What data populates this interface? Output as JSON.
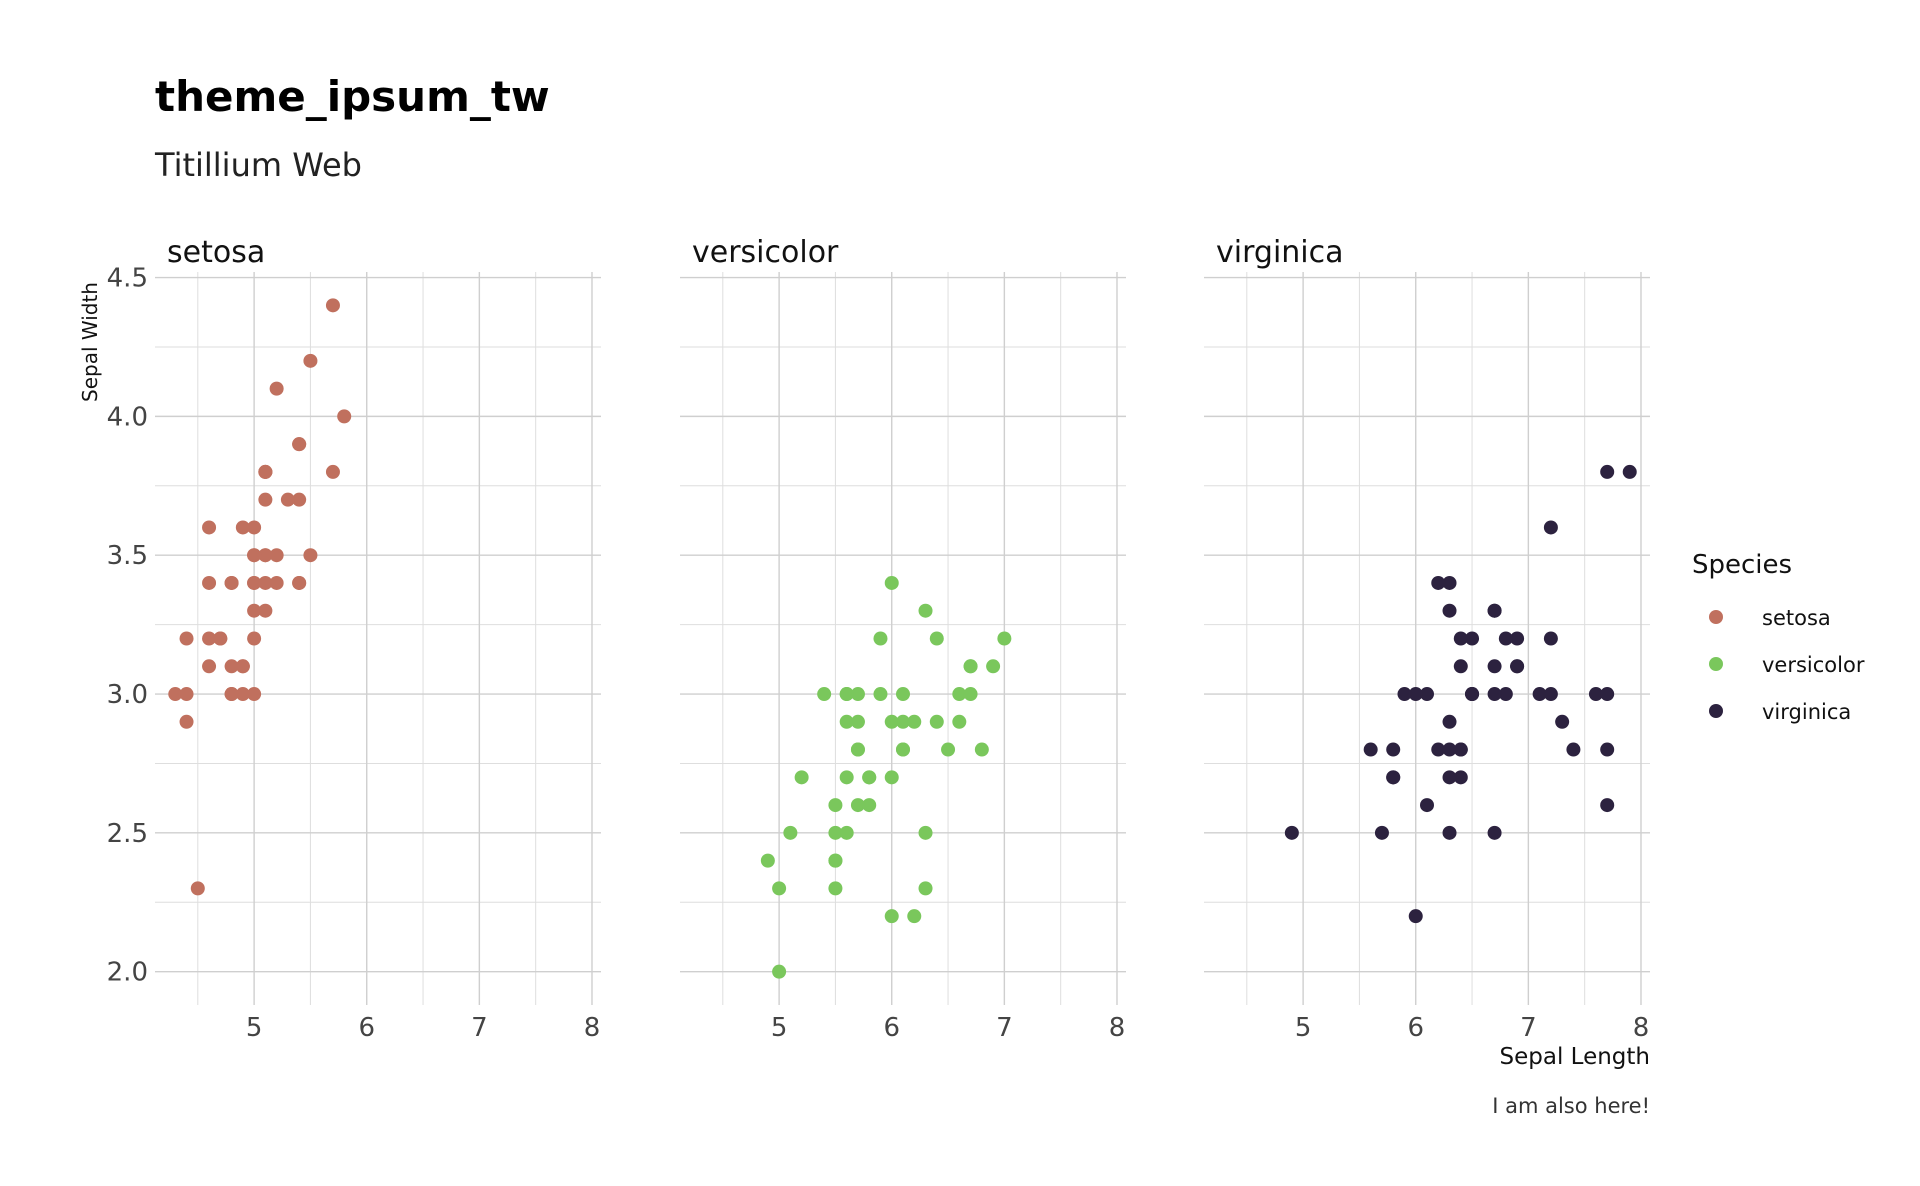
{
  "chart_data": {
    "type": "scatter",
    "title": "theme_ipsum_tw",
    "subtitle": "Titillium Web",
    "xlabel": "Sepal Length",
    "ylabel": "Sepal Width",
    "caption": "I am also here!",
    "xlim": [
      4.3,
      8.0
    ],
    "ylim": [
      2.0,
      4.4
    ],
    "x_ticks": [
      5,
      6,
      7,
      8
    ],
    "x_tick_labels": [
      "5",
      "6",
      "7",
      "8"
    ],
    "y_ticks": [
      2.0,
      2.5,
      3.0,
      3.5,
      4.0,
      4.5
    ],
    "y_tick_labels": [
      "2.0",
      "2.5",
      "3.0",
      "3.5",
      "4.0",
      "4.5"
    ],
    "grid": true,
    "legend": {
      "title": "Species",
      "placement": "right"
    },
    "facets": [
      {
        "name": "setosa",
        "color": "#c0705e",
        "points": [
          [
            5.1,
            3.5
          ],
          [
            4.9,
            3.0
          ],
          [
            4.7,
            3.2
          ],
          [
            4.6,
            3.1
          ],
          [
            5.0,
            3.6
          ],
          [
            5.4,
            3.9
          ],
          [
            4.6,
            3.4
          ],
          [
            5.0,
            3.4
          ],
          [
            4.4,
            2.9
          ],
          [
            4.9,
            3.1
          ],
          [
            5.4,
            3.7
          ],
          [
            4.8,
            3.4
          ],
          [
            4.8,
            3.0
          ],
          [
            4.3,
            3.0
          ],
          [
            5.8,
            4.0
          ],
          [
            5.7,
            4.4
          ],
          [
            5.4,
            3.9
          ],
          [
            5.1,
            3.5
          ],
          [
            5.7,
            3.8
          ],
          [
            5.1,
            3.8
          ],
          [
            5.4,
            3.4
          ],
          [
            5.1,
            3.7
          ],
          [
            4.6,
            3.6
          ],
          [
            5.1,
            3.3
          ],
          [
            4.8,
            3.4
          ],
          [
            5.0,
            3.0
          ],
          [
            5.0,
            3.4
          ],
          [
            5.2,
            3.5
          ],
          [
            5.2,
            3.4
          ],
          [
            4.7,
            3.2
          ],
          [
            4.8,
            3.1
          ],
          [
            5.4,
            3.4
          ],
          [
            5.2,
            4.1
          ],
          [
            5.5,
            4.2
          ],
          [
            4.9,
            3.1
          ],
          [
            5.0,
            3.2
          ],
          [
            5.5,
            3.5
          ],
          [
            4.9,
            3.6
          ],
          [
            4.4,
            3.0
          ],
          [
            5.1,
            3.4
          ],
          [
            5.0,
            3.5
          ],
          [
            4.5,
            2.3
          ],
          [
            4.4,
            3.2
          ],
          [
            5.0,
            3.5
          ],
          [
            5.1,
            3.8
          ],
          [
            4.8,
            3.0
          ],
          [
            5.1,
            3.8
          ],
          [
            4.6,
            3.2
          ],
          [
            5.3,
            3.7
          ],
          [
            5.0,
            3.3
          ]
        ]
      },
      {
        "name": "versicolor",
        "color": "#7ac75c",
        "points": [
          [
            7.0,
            3.2
          ],
          [
            6.4,
            3.2
          ],
          [
            6.9,
            3.1
          ],
          [
            5.5,
            2.3
          ],
          [
            6.5,
            2.8
          ],
          [
            5.7,
            2.8
          ],
          [
            6.3,
            3.3
          ],
          [
            4.9,
            2.4
          ],
          [
            6.6,
            2.9
          ],
          [
            5.2,
            2.7
          ],
          [
            5.0,
            2.0
          ],
          [
            5.9,
            3.0
          ],
          [
            6.0,
            2.2
          ],
          [
            6.1,
            2.9
          ],
          [
            5.6,
            2.9
          ],
          [
            6.7,
            3.1
          ],
          [
            5.6,
            3.0
          ],
          [
            5.8,
            2.7
          ],
          [
            6.2,
            2.2
          ],
          [
            5.6,
            2.5
          ],
          [
            5.9,
            3.2
          ],
          [
            6.1,
            2.8
          ],
          [
            6.3,
            2.5
          ],
          [
            6.1,
            2.8
          ],
          [
            6.4,
            2.9
          ],
          [
            6.6,
            3.0
          ],
          [
            6.8,
            2.8
          ],
          [
            6.7,
            3.0
          ],
          [
            6.0,
            2.9
          ],
          [
            5.7,
            2.6
          ],
          [
            5.5,
            2.4
          ],
          [
            5.5,
            2.4
          ],
          [
            5.8,
            2.7
          ],
          [
            6.0,
            2.7
          ],
          [
            5.4,
            3.0
          ],
          [
            6.0,
            3.4
          ],
          [
            6.7,
            3.1
          ],
          [
            6.3,
            2.3
          ],
          [
            5.6,
            3.0
          ],
          [
            5.5,
            2.5
          ],
          [
            5.5,
            2.6
          ],
          [
            6.1,
            3.0
          ],
          [
            5.8,
            2.6
          ],
          [
            5.0,
            2.3
          ],
          [
            5.6,
            2.7
          ],
          [
            5.7,
            3.0
          ],
          [
            5.7,
            2.9
          ],
          [
            6.2,
            2.9
          ],
          [
            5.1,
            2.5
          ],
          [
            5.7,
            2.8
          ]
        ]
      },
      {
        "name": "virginica",
        "color": "#2c223f",
        "points": [
          [
            6.3,
            3.3
          ],
          [
            5.8,
            2.7
          ],
          [
            7.1,
            3.0
          ],
          [
            6.3,
            2.9
          ],
          [
            6.5,
            3.0
          ],
          [
            7.6,
            3.0
          ],
          [
            4.9,
            2.5
          ],
          [
            7.3,
            2.9
          ],
          [
            6.7,
            2.5
          ],
          [
            7.2,
            3.6
          ],
          [
            6.5,
            3.2
          ],
          [
            6.4,
            2.7
          ],
          [
            6.8,
            3.0
          ],
          [
            5.7,
            2.5
          ],
          [
            5.8,
            2.8
          ],
          [
            6.4,
            3.2
          ],
          [
            6.5,
            3.0
          ],
          [
            7.7,
            3.8
          ],
          [
            7.7,
            2.6
          ],
          [
            6.0,
            2.2
          ],
          [
            6.9,
            3.2
          ],
          [
            5.6,
            2.8
          ],
          [
            7.7,
            2.8
          ],
          [
            6.3,
            2.7
          ],
          [
            6.7,
            3.3
          ],
          [
            7.2,
            3.2
          ],
          [
            6.2,
            2.8
          ],
          [
            6.1,
            3.0
          ],
          [
            6.4,
            2.8
          ],
          [
            7.2,
            3.0
          ],
          [
            7.4,
            2.8
          ],
          [
            7.9,
            3.8
          ],
          [
            6.4,
            2.8
          ],
          [
            6.3,
            2.8
          ],
          [
            6.1,
            2.6
          ],
          [
            7.7,
            3.0
          ],
          [
            6.3,
            3.4
          ],
          [
            6.4,
            3.1
          ],
          [
            6.0,
            3.0
          ],
          [
            6.9,
            3.1
          ],
          [
            6.7,
            3.1
          ],
          [
            6.9,
            3.1
          ],
          [
            5.8,
            2.7
          ],
          [
            6.8,
            3.2
          ],
          [
            6.7,
            3.3
          ],
          [
            6.7,
            3.0
          ],
          [
            6.3,
            2.5
          ],
          [
            6.5,
            3.0
          ],
          [
            6.2,
            3.4
          ],
          [
            5.9,
            3.0
          ]
        ]
      }
    ]
  }
}
